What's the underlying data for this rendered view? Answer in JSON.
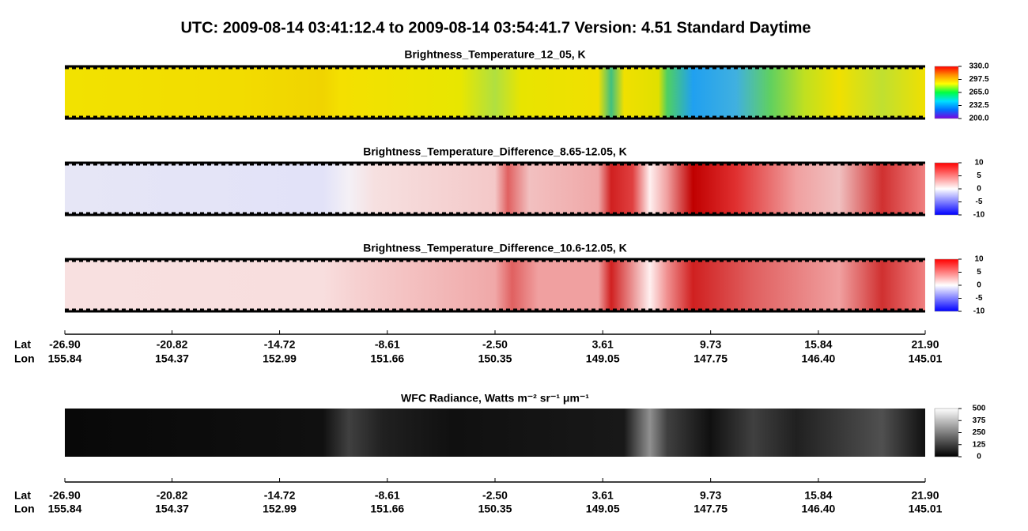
{
  "title": "UTC:  2009-08-14   03:41:12.4  to  2009-08-14   03:54:41.7    Version: 4.51  Standard Daytime",
  "chart_data": [
    {
      "type": "heatmap",
      "title": "Brightness_Temperature_12_05, K",
      "colorbar": {
        "lim": [
          200,
          330
        ],
        "colors": [
          "#7a00e0",
          "#0070ff",
          "#00e0ff",
          "#00ff40",
          "#ffff00",
          "#ff9000",
          "#ff0000"
        ],
        "ticks": [
          {
            "value": 330,
            "label": "330.0"
          },
          {
            "value": 297.5,
            "label": "297.5"
          },
          {
            "value": 265,
            "label": "265.0"
          },
          {
            "value": 232.5,
            "label": "232.5"
          },
          {
            "value": 200,
            "label": "200.0"
          }
        ]
      }
    },
    {
      "type": "heatmap",
      "title": "Brightness_Temperature_Difference_8.65-12.05, K",
      "colorbar": {
        "lim": [
          -10,
          10
        ],
        "colors": [
          "#0000ff",
          "#ffffff",
          "#ff0000"
        ],
        "ticks": [
          10,
          5,
          0,
          -5,
          -10
        ]
      }
    },
    {
      "type": "heatmap",
      "title": "Brightness_Temperature_Difference_10.6-12.05, K",
      "colorbar": {
        "lim": [
          -10,
          10
        ],
        "colors": [
          "#0000ff",
          "#ffffff",
          "#ff0000"
        ],
        "ticks": [
          10,
          5,
          0,
          -5,
          -10
        ]
      }
    },
    {
      "type": "heatmap",
      "title": "WFC Radiance, Watts m⁻² sr⁻¹ μm⁻¹",
      "colorbar": {
        "lim": [
          0,
          500
        ],
        "colors": [
          "#000000",
          "#ffffff"
        ],
        "ticks": [
          500,
          375,
          250,
          125,
          0
        ]
      }
    }
  ],
  "axis": {
    "lat_label": "Lat",
    "lon_label": "Lon",
    "xlim": [
      -26.9,
      21.9
    ],
    "xticks": [
      {
        "value": -26.9,
        "label": "-26.90"
      },
      -20.82,
      -14.72,
      -8.61,
      {
        "value": -2.5,
        "label": "-2.50"
      },
      3.61,
      9.73,
      15.84,
      {
        "value": 21.9,
        "label": "21.90"
      }
    ],
    "lon": [
      155.84,
      154.37,
      152.99,
      151.66,
      150.35,
      149.05,
      147.75,
      {
        "value": 146.4,
        "label": "146.40"
      },
      145.01
    ]
  }
}
